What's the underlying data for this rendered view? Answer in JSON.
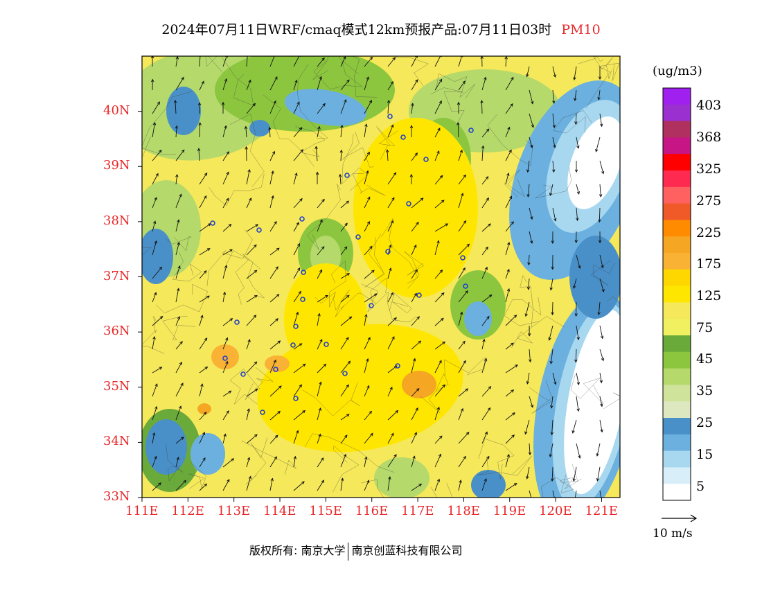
{
  "title": {
    "main": "2024年07月11日WRF/cmaq模式12km预报产品:07月11日03时",
    "variable": "PM10"
  },
  "map": {
    "lat_labels": [
      "40N",
      "39N",
      "38N",
      "37N",
      "36N",
      "35N",
      "34N",
      "33N"
    ],
    "lon_labels": [
      "111E",
      "112E",
      "113E",
      "114E",
      "115E",
      "116E",
      "117E",
      "118E",
      "119E",
      "120E",
      "121E"
    ],
    "lat_range": [
      33,
      41
    ],
    "lon_range": [
      111,
      121.4
    ],
    "axis_color": "#e8282a"
  },
  "legend": {
    "unit": "(ug/m3)",
    "labels": [
      "403",
      "368",
      "325",
      "275",
      "225",
      "175",
      "125",
      "75",
      "45",
      "35",
      "25",
      "15",
      "5"
    ],
    "colors": [
      "#a020f0",
      "#9b30d0",
      "#b03060",
      "#c71585",
      "#ff0000",
      "#ff2a4f",
      "#ff6060",
      "#f05a28",
      "#ff8c00",
      "#f5a623",
      "#f9b233",
      "#ffd700",
      "#ffe600",
      "#f5e85a",
      "#f0f060",
      "#6aaa3a",
      "#8cc63f",
      "#b5d96b",
      "#cfe39a",
      "#dde8c0",
      "#4a90c8",
      "#6bb0de",
      "#a8d8f0",
      "#d8eef8",
      "#ffffff"
    ]
  },
  "wind_reference": {
    "label": "10 m/s"
  },
  "footer": {
    "copyright": "版权所有: 南京大学",
    "company": "南京创蓝科技有限公司"
  }
}
